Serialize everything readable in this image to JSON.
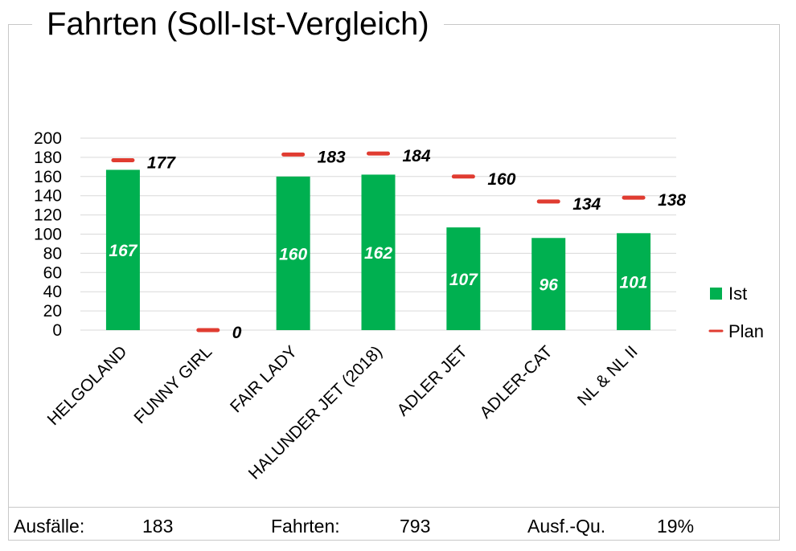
{
  "title": "Fahrten (Soll-Ist-Vergleich)",
  "colors": {
    "ist": "#00b050",
    "plan": "#e03c31",
    "grid": "#d9d9d9",
    "frame": "#c8c8c8"
  },
  "chart_data": {
    "type": "bar",
    "title": "Fahrten (Soll-Ist-Vergleich)",
    "categories": [
      "HELGOLAND",
      "FUNNY GIRL",
      "FAIR LADY",
      "HALUNDER JET (2018)",
      "ADLER JET",
      "ADLER-CAT",
      "NL & NL II"
    ],
    "series": [
      {
        "name": "Ist",
        "type": "bar",
        "values": [
          167,
          null,
          160,
          162,
          107,
          96,
          101
        ],
        "labels": [
          "167",
          "",
          "160",
          "162",
          "107",
          "96",
          "101"
        ]
      },
      {
        "name": "Plan",
        "type": "marker",
        "values": [
          177,
          0,
          183,
          184,
          160,
          134,
          138
        ],
        "labels": [
          "177",
          "0",
          "183",
          "184",
          "160",
          "134",
          "138"
        ]
      }
    ],
    "ylim": [
      0,
      200
    ],
    "yticks": [
      "0",
      "20",
      "40",
      "60",
      "80",
      "100",
      "120",
      "140",
      "160",
      "180",
      "200"
    ],
    "grid": true,
    "legend": "right"
  },
  "footer": {
    "ausfaelle_label": "Ausfälle:",
    "ausfaelle_value": "183",
    "fahrten_label": "Fahrten:",
    "fahrten_value": "793",
    "quote_label": "Ausf.-Qu.",
    "quote_value": "19%"
  }
}
